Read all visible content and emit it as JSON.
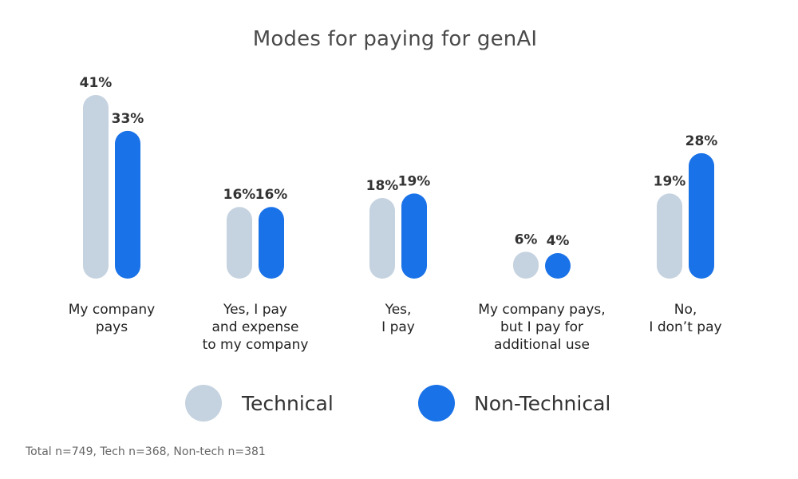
{
  "chart_data": {
    "type": "bar",
    "title": "Modes for paying for genAI",
    "categories": [
      [
        "My company",
        "pays"
      ],
      [
        "Yes, I pay",
        "and expense",
        "to my company"
      ],
      [
        "Yes,",
        "I pay"
      ],
      [
        "My company pays,",
        "but I pay for",
        "additional use"
      ],
      [
        "No,",
        "I don’t pay"
      ]
    ],
    "series": [
      {
        "name": "Technical",
        "color": "#c5d2df",
        "values": [
          41,
          16,
          18,
          6,
          19
        ]
      },
      {
        "name": "Non-Technical",
        "color": "#1a72e8",
        "values": [
          33,
          16,
          19,
          4,
          28
        ]
      }
    ],
    "value_suffix": "%",
    "legend_position": "bottom-center",
    "grid": false,
    "axes_visible": false
  },
  "footnote": "Total n=749, Tech n=368, Non-tech n=381"
}
